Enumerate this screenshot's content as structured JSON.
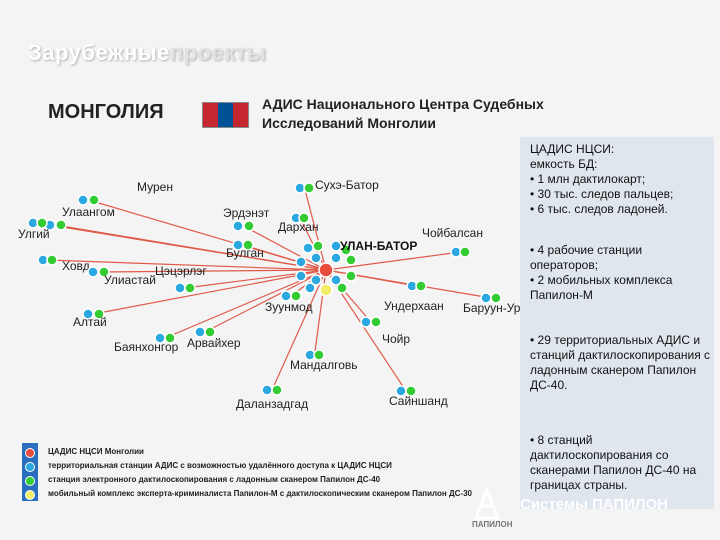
{
  "header": {
    "title_bold": "Зарубежные",
    "title_light": "проекты"
  },
  "country": "МОНГОЛИЯ",
  "flag_colors": [
    "#c4272f",
    "#015197",
    "#c4272f"
  ],
  "title_line1": "АДИС Национального Центра Судебных",
  "title_line2": "Исследований Монголии",
  "colors": {
    "center": "#e84c3d",
    "remote": "#2ba8e0",
    "palm": "#33cc33",
    "mobile": "#f2ee6a",
    "line": "#e05a4a"
  },
  "diagram": {
    "hub": "УЛАН-БАТОР",
    "nodes": [
      {
        "name": "Мурен"
      },
      {
        "name": "Сухэ-Батор"
      },
      {
        "name": "Улаангом"
      },
      {
        "name": "Эрдэнэт"
      },
      {
        "name": "Дархан"
      },
      {
        "name": "Улгий"
      },
      {
        "name": "Чойбалсан"
      },
      {
        "name": "Булган"
      },
      {
        "name": "Ховд"
      },
      {
        "name": "Улиастай"
      },
      {
        "name": "Цэцэрлэг"
      },
      {
        "name": "Ундерхаан"
      },
      {
        "name": "Баруун-Урт"
      },
      {
        "name": "Зуунмод"
      },
      {
        "name": "Алтай"
      },
      {
        "name": "Баянхонгор"
      },
      {
        "name": "Арвайхер"
      },
      {
        "name": "Чойр"
      },
      {
        "name": "Мандалговь"
      },
      {
        "name": "Даланзадгад"
      },
      {
        "name": "Сайншанд"
      }
    ]
  },
  "info": [
    "ЦАДИС НЦСИ:\nемкость БД:\n• 1 млн дактилокарт;\n• 30 тыс. следов пальцев;\n• 6 тыс. следов ладоней.",
    "• 4 рабочие станции операторов;\n• 2 мобильных комплекса Папилон-М",
    "• 29 территориальных АДИС и станций дактилоскопирования с ладонным сканером Папилон ДС-40.",
    "• 8 станций дактилоскопирования со сканерами Папилон ДС-40 на границах страны."
  ],
  "legend": [
    "ЦАДИС НЦСИ Монголии",
    "территориальная станции АДИС с возможностью удалённого доступа к ЦАДИС НЦСИ",
    "станция электронного дактилоскопирования с ладонным сканером Папилон ДС-40",
    "мобильный комплекс эксперта-криминалиста Папилон-М с дактилоскопическим сканером Папилон ДС-30"
  ],
  "brand": {
    "name": "Системы ПАПИЛОН",
    "logo_text": "ПАПИЛОН"
  }
}
